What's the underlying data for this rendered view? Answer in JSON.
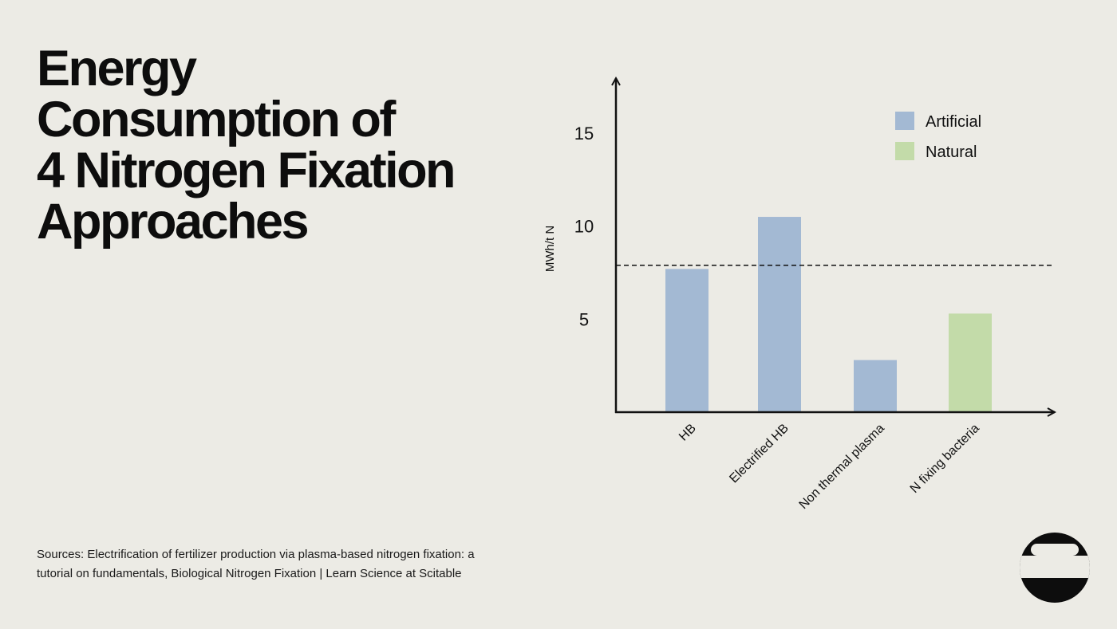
{
  "header": {
    "title_lines": [
      "Energy",
      "Consumption of",
      "4  Nitrogen Fixation",
      "Approaches"
    ]
  },
  "footer": {
    "sources_line1": "Sources: Electrification of fertilizer production via plasma-based nitrogen fixation: a",
    "sources_line2": "tutorial on fundamentals, Biological Nitrogen Fixation | Learn Science at Scitable"
  },
  "chart_data": {
    "type": "bar",
    "title": "",
    "xlabel": "",
    "ylabel": "MWh/t N",
    "categories": [
      "HB",
      "Electrified HB",
      "Non thermal plasma",
      "N fixing bacteria"
    ],
    "values": [
      7.7,
      10.5,
      2.8,
      5.3
    ],
    "bar_groups": [
      "Artificial",
      "Artificial",
      "Artificial",
      "Natural"
    ],
    "legend": [
      {
        "name": "Artificial",
        "color": "#a3b9d3"
      },
      {
        "name": "Natural",
        "color": "#c3dba9"
      }
    ],
    "legend_position": "top-right",
    "yticks": [
      5,
      10,
      15
    ],
    "ylim": [
      0,
      18
    ],
    "reference_line": {
      "value": 7.9,
      "style": "dashed"
    },
    "grid": false
  }
}
